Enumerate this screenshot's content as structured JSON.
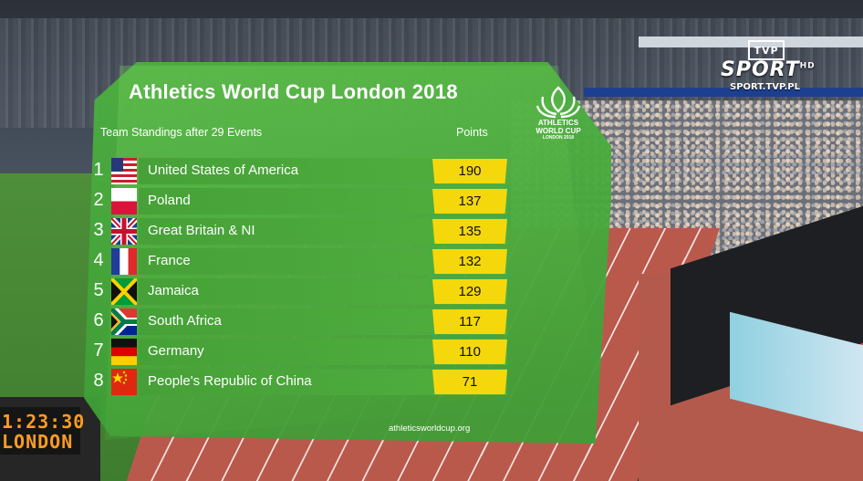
{
  "graphic": {
    "title": "Athletics World Cup London 2018",
    "subtitle": "Team Standings after 29 Events",
    "points_header": "Points",
    "logo_line1": "ATHLETICS",
    "logo_line2": "WORLD CUP",
    "logo_line3": "LONDON 2018",
    "url": "athleticsworldcup.org",
    "standings": [
      {
        "rank": "1",
        "team": "United States of America",
        "points": "190",
        "flag": "usa-flag"
      },
      {
        "rank": "2",
        "team": "Poland",
        "points": "137",
        "flag": "poland-flag"
      },
      {
        "rank": "3",
        "team": "Great Britain & NI",
        "points": "135",
        "flag": "uk-flag"
      },
      {
        "rank": "4",
        "team": "France",
        "points": "132",
        "flag": "france-flag"
      },
      {
        "rank": "5",
        "team": "Jamaica",
        "points": "129",
        "flag": "jamaica-flag"
      },
      {
        "rank": "6",
        "team": "South Africa",
        "points": "117",
        "flag": "south-africa-flag"
      },
      {
        "rank": "7",
        "team": "Germany",
        "points": "110",
        "flag": "germany-flag"
      },
      {
        "rank": "8",
        "team": "People's Republic of China",
        "points": "71",
        "flag": "china-flag"
      }
    ],
    "colors": {
      "panel": "#4caf40",
      "points_box": "#f5d80b"
    }
  },
  "broadcaster": {
    "tvp": "TVP",
    "sport": "SPORT",
    "sport_sup": "HD",
    "url": "SPORT.TVP.PL"
  },
  "clock": {
    "time": "1:23:30",
    "location": "LONDON"
  }
}
